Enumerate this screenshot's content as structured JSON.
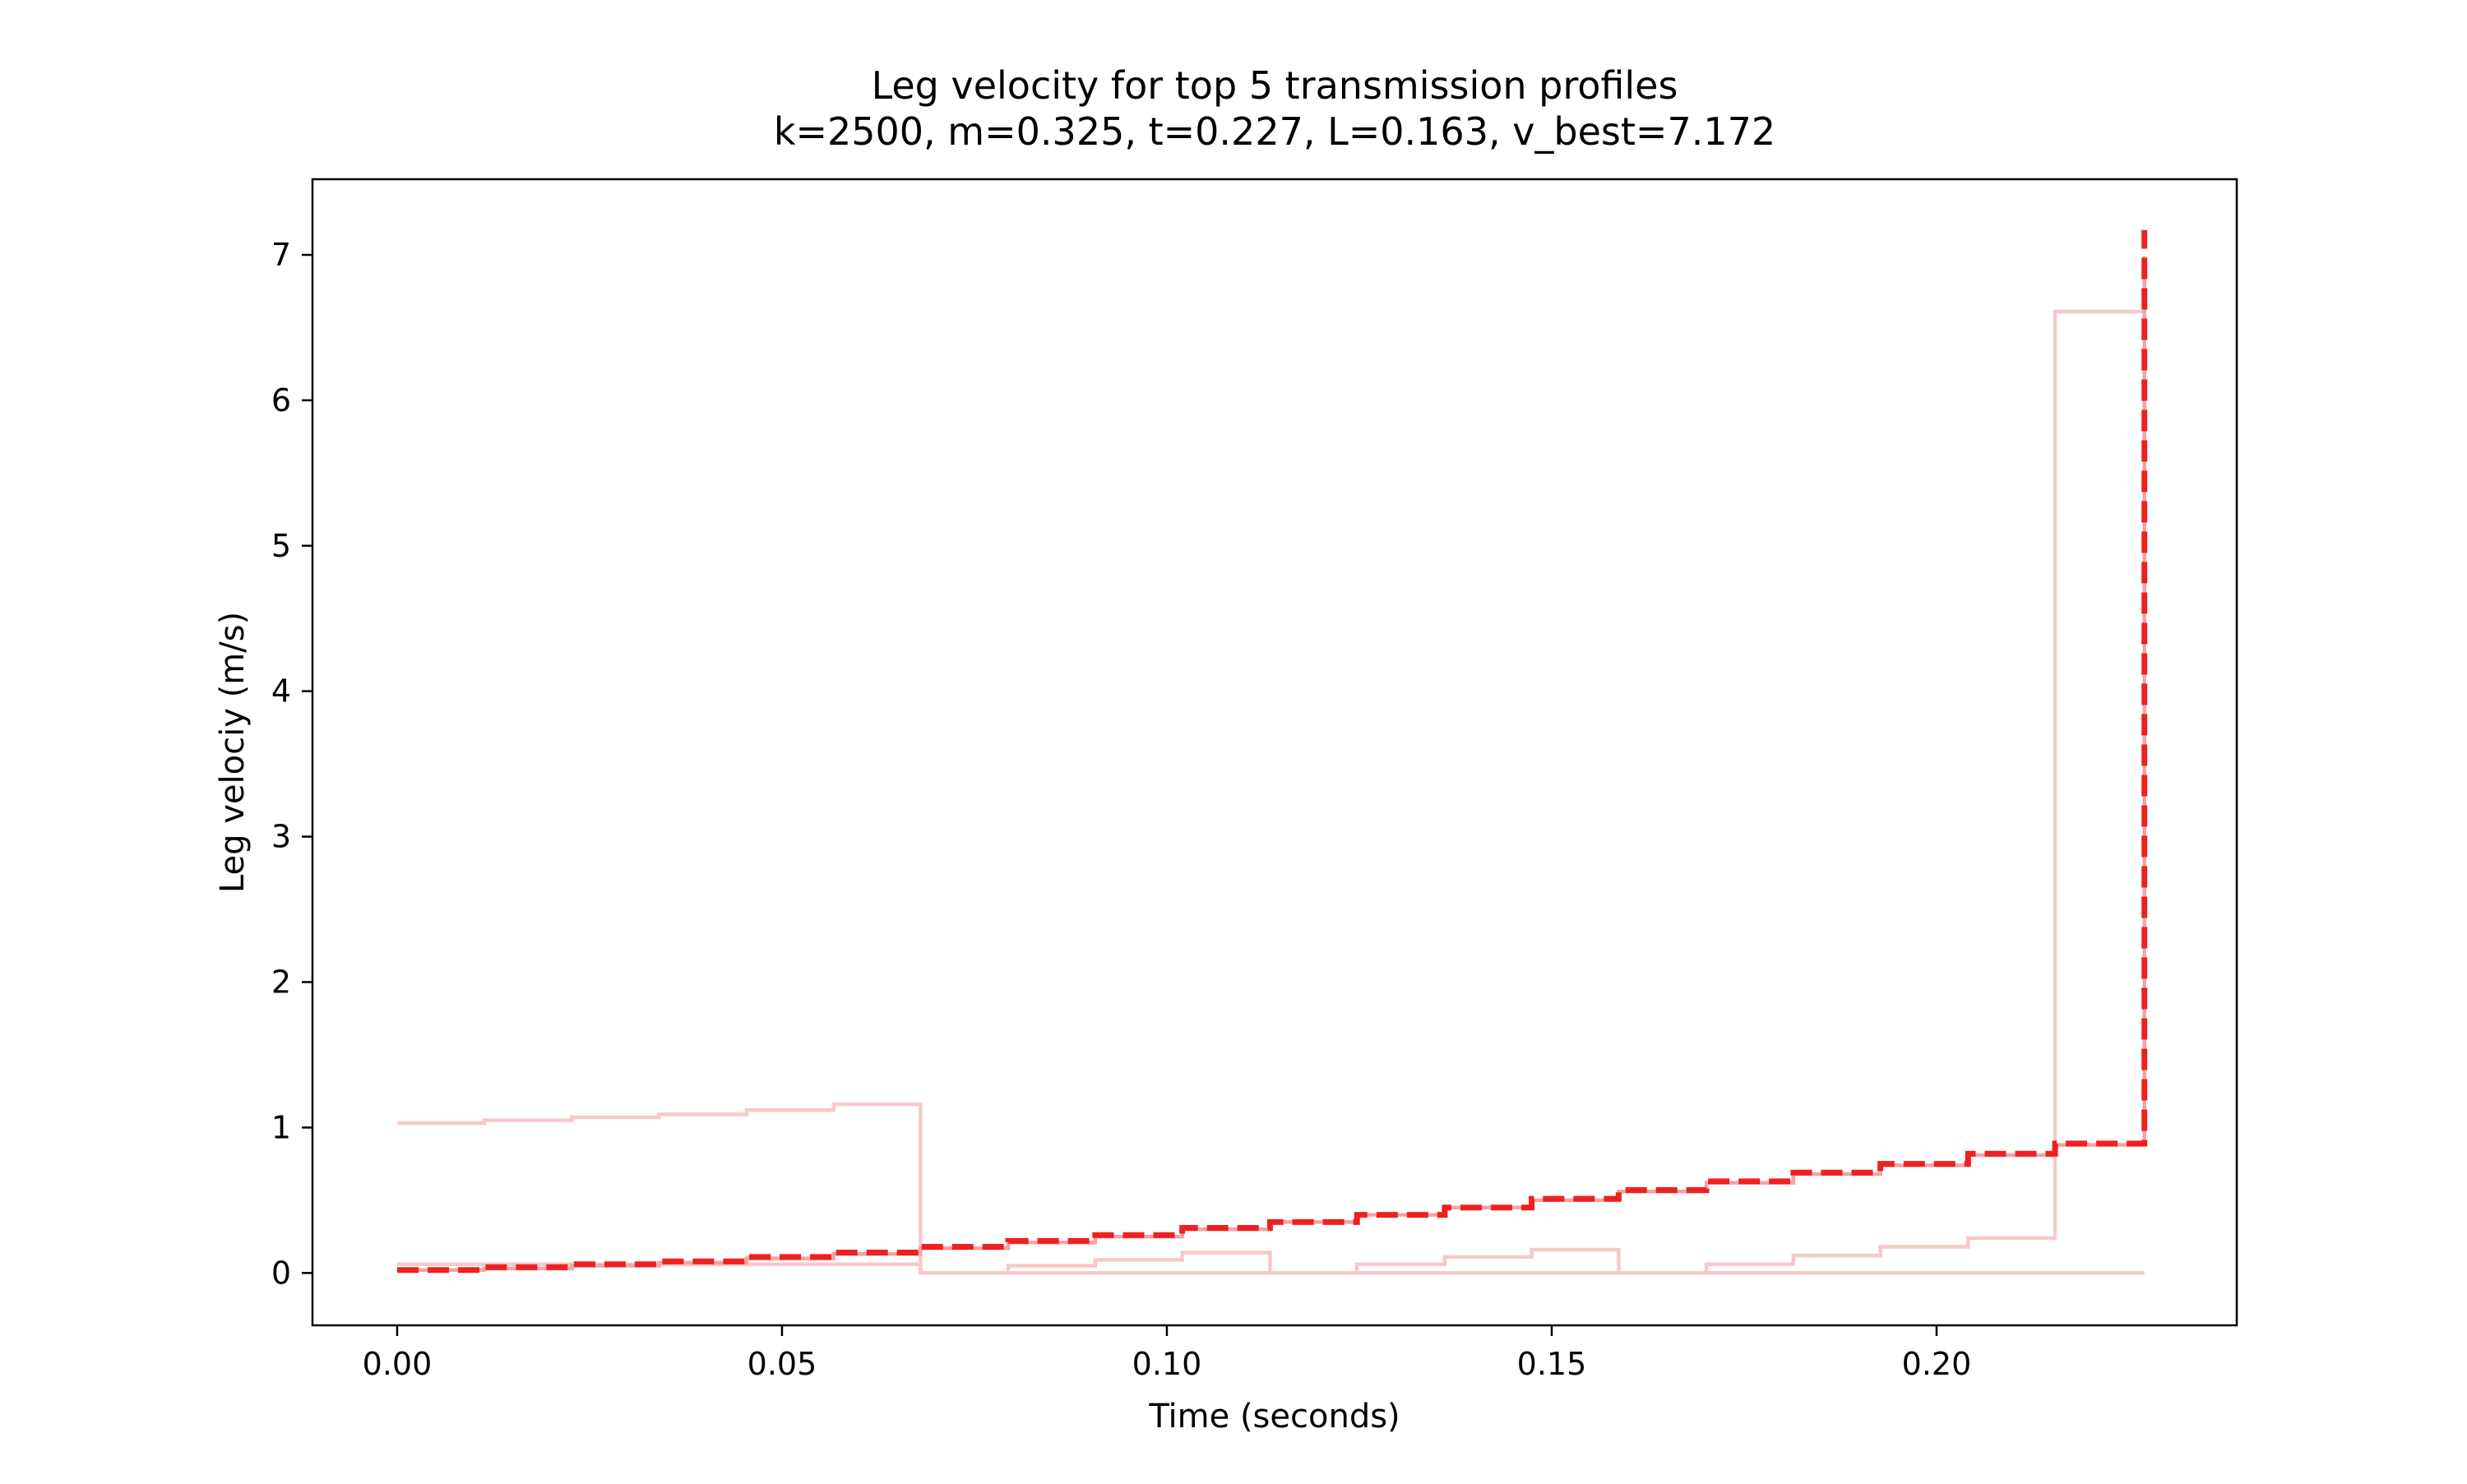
{
  "chart_data": {
    "type": "line",
    "title": "Leg velocity for top 5 transmission profiles",
    "subtitle": "k=2500, m=0.325, t=0.227, L=0.163, v_best=7.172",
    "xlabel": "Time (seconds)",
    "ylabel": "Leg velociy (m/s)",
    "xlim": [
      -0.011,
      0.239
    ],
    "ylim": [
      -0.36,
      7.52
    ],
    "x_ticks": [
      "0.00",
      "0.05",
      "0.10",
      "0.15",
      "0.20"
    ],
    "y_ticks": [
      "0",
      "1",
      "2",
      "3",
      "4",
      "5",
      "6",
      "7"
    ],
    "grid": false,
    "legend": false,
    "step_mode": "post",
    "series": [
      {
        "style": "solid",
        "color": "#f7c9c9",
        "x": [
          0.0,
          0.0113,
          0.0227,
          0.034,
          0.0454,
          0.0567,
          0.068,
          0.227
        ],
        "y": [
          1.03,
          1.05,
          1.07,
          1.09,
          1.12,
          1.16,
          0.0,
          0.0
        ]
      },
      {
        "style": "solid",
        "color": "#f7c9c9",
        "x": [
          0.0,
          0.068,
          0.0794,
          0.0907,
          0.102,
          0.1134,
          0.1247,
          0.1361,
          0.1474,
          0.1587,
          0.1701,
          0.1814,
          0.1927,
          0.2041,
          0.2154,
          0.227
        ],
        "y": [
          0.06,
          0.0,
          0.05,
          0.09,
          0.14,
          0.0,
          0.06,
          0.11,
          0.16,
          0.0,
          0.06,
          0.12,
          0.18,
          0.24,
          6.61,
          6.61
        ]
      },
      {
        "style": "solid",
        "color": "#f5a3a3",
        "x": [
          0.0,
          0.0113,
          0.0227,
          0.034,
          0.0454,
          0.0567,
          0.068,
          0.0794,
          0.0907,
          0.102,
          0.1134,
          0.1247,
          0.1361,
          0.1474,
          0.1587,
          0.1701,
          0.1814,
          0.1927,
          0.2041,
          0.2154,
          0.227
        ],
        "y": [
          0.02,
          0.03,
          0.05,
          0.07,
          0.1,
          0.13,
          0.17,
          0.21,
          0.25,
          0.3,
          0.35,
          0.4,
          0.45,
          0.5,
          0.56,
          0.62,
          0.68,
          0.74,
          0.81,
          0.88,
          6.99
        ]
      },
      {
        "style": "dashed",
        "color": "#ee2020",
        "x": [
          0.0,
          0.0113,
          0.0227,
          0.034,
          0.0454,
          0.0567,
          0.068,
          0.0794,
          0.0907,
          0.102,
          0.1134,
          0.1247,
          0.1361,
          0.1474,
          0.1587,
          0.1701,
          0.1814,
          0.1927,
          0.2041,
          0.2154,
          0.227
        ],
        "y": [
          0.02,
          0.04,
          0.06,
          0.08,
          0.11,
          0.14,
          0.18,
          0.22,
          0.26,
          0.31,
          0.35,
          0.4,
          0.45,
          0.51,
          0.57,
          0.63,
          0.69,
          0.75,
          0.82,
          0.89,
          7.17
        ]
      }
    ]
  }
}
